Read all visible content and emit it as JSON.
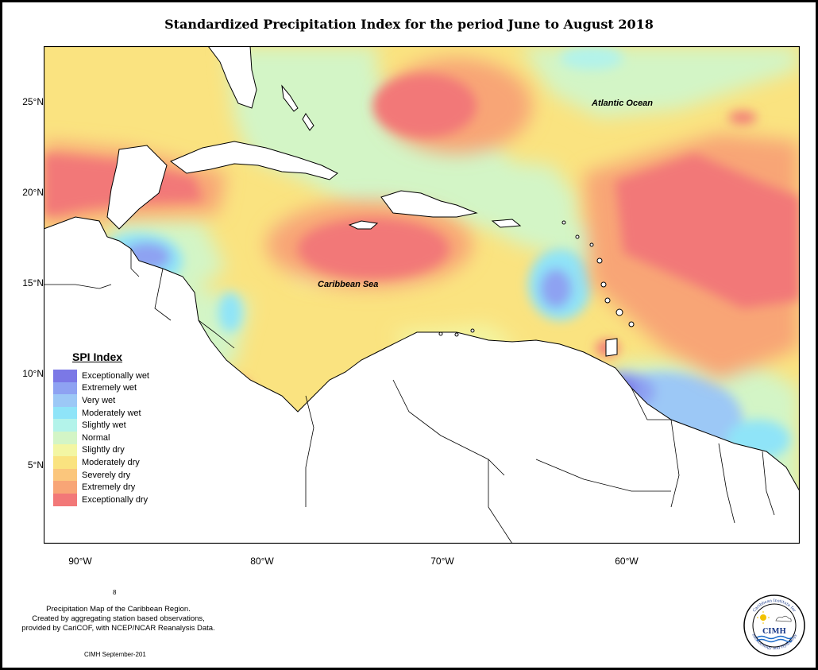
{
  "title": "Standardized Precipitation Index for the period June to August 2018",
  "axes": {
    "lat_labels": [
      "25°N",
      "20°N",
      "15°N",
      "10°N",
      "5°N"
    ],
    "lon_labels": [
      "90°W",
      "80°W",
      "70°W",
      "60°W"
    ]
  },
  "map_labels": {
    "ocean": "Atlantic Ocean",
    "sea": "Caribbean Sea"
  },
  "legend": {
    "title": "SPI Index",
    "items": [
      {
        "label": "Exceptionally wet",
        "color": "#7b78e6"
      },
      {
        "label": "Extremely wet",
        "color": "#8ea2f2"
      },
      {
        "label": "Very wet",
        "color": "#9cc8f6"
      },
      {
        "label": "Moderately wet",
        "color": "#8fe4f8"
      },
      {
        "label": "Slightly wet",
        "color": "#b3f3ea"
      },
      {
        "label": "Normal",
        "color": "#d3f5c6"
      },
      {
        "label": "Slightly dry",
        "color": "#f3f6a3"
      },
      {
        "label": "Moderately dry",
        "color": "#fae380"
      },
      {
        "label": "Severely dry",
        "color": "#fbc67c"
      },
      {
        "label": "Extremely dry",
        "color": "#f8a576"
      },
      {
        "label": "Exceptionally dry",
        "color": "#f27878"
      }
    ]
  },
  "stray_mark": "8",
  "caption": {
    "line1": "Precipitation Map of the Caribbean Region.",
    "line2": "Created by aggregating station based observations,",
    "line3": "provided by CariCOF, with NCEP/NCAR Reanalysis Data."
  },
  "footer_credit": "CIMH September-201",
  "logo": {
    "name": "CIMH",
    "ring_top": "Caribbean Institute for",
    "ring_bottom": "Meteorology and Hydrology"
  }
}
